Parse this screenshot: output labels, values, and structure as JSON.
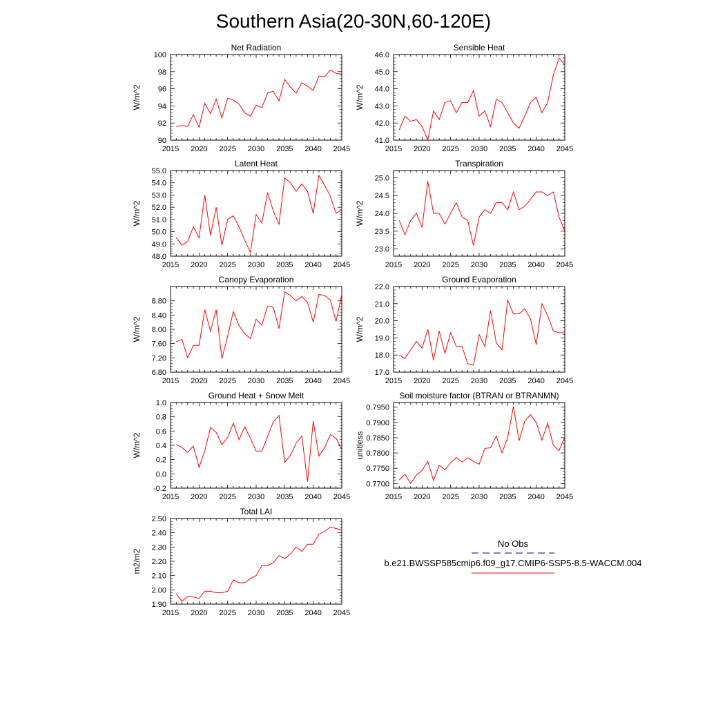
{
  "title": "Southern Asia(20-30N,60-120E)",
  "colors": {
    "series": "#ff0000",
    "obs": "#3333aa",
    "axis": "#000000"
  },
  "legend": {
    "obs_label": "No Obs",
    "model_label": "b.e21.BWSSP585cmip6.f09_g17.CMIP6-SSP5-8.5-WACCM.004"
  },
  "chart_data": [
    {
      "type": "line",
      "title": "Net Radiation",
      "ylabel": "W/m^2",
      "xlim": [
        2015,
        2045
      ],
      "ylim": [
        90,
        100
      ],
      "yticks": [
        "90",
        "92",
        "94",
        "96",
        "98",
        "100"
      ],
      "xticks": [
        "2015",
        "2020",
        "2025",
        "2030",
        "2035",
        "2040",
        "2045"
      ],
      "x": [
        2016,
        2017,
        2018,
        2019,
        2020,
        2021,
        2022,
        2023,
        2024,
        2025,
        2026,
        2027,
        2028,
        2029,
        2030,
        2031,
        2032,
        2033,
        2034,
        2035,
        2036,
        2037,
        2038,
        2039,
        2040,
        2041,
        2042,
        2043,
        2044,
        2045
      ],
      "values": [
        91.6,
        91.7,
        91.6,
        93.0,
        91.5,
        94.3,
        93.1,
        94.8,
        92.6,
        94.9,
        94.7,
        94.2,
        93.2,
        92.8,
        94.1,
        93.8,
        95.5,
        95.7,
        94.6,
        97.1,
        96.2,
        95.5,
        96.7,
        96.3,
        95.8,
        97.5,
        97.4,
        98.2,
        97.8,
        97.7
      ]
    },
    {
      "type": "line",
      "title": "Sensible Heat",
      "ylabel": "W/m^2",
      "xlim": [
        2015,
        2045
      ],
      "ylim": [
        41,
        46
      ],
      "yticks": [
        "41.0",
        "42.0",
        "43.0",
        "44.0",
        "45.0",
        "46.0"
      ],
      "xticks": [
        "2015",
        "2020",
        "2025",
        "2030",
        "2035",
        "2040",
        "2045"
      ],
      "x": [
        2016,
        2017,
        2018,
        2019,
        2020,
        2021,
        2022,
        2023,
        2024,
        2025,
        2026,
        2027,
        2028,
        2029,
        2030,
        2031,
        2032,
        2033,
        2034,
        2035,
        2036,
        2037,
        2038,
        2039,
        2040,
        2041,
        2042,
        2043,
        2044,
        2045
      ],
      "values": [
        41.6,
        42.4,
        42.1,
        42.2,
        41.8,
        41.0,
        42.7,
        42.2,
        43.2,
        43.3,
        42.6,
        43.2,
        43.2,
        43.9,
        42.4,
        42.7,
        41.8,
        43.4,
        43.2,
        42.6,
        42.0,
        41.7,
        42.4,
        43.2,
        43.5,
        42.6,
        43.2,
        44.8,
        45.8,
        45.4
      ]
    },
    {
      "type": "line",
      "title": "Latent Heat",
      "ylabel": "W/m^2",
      "xlim": [
        2015,
        2045
      ],
      "ylim": [
        48,
        55
      ],
      "yticks": [
        "48.0",
        "49.0",
        "50.0",
        "51.0",
        "52.0",
        "53.0",
        "54.0",
        "55.0"
      ],
      "xticks": [
        "2015",
        "2020",
        "2025",
        "2030",
        "2035",
        "2040",
        "2045"
      ],
      "x": [
        2016,
        2017,
        2018,
        2019,
        2020,
        2021,
        2022,
        2023,
        2024,
        2025,
        2026,
        2027,
        2028,
        2029,
        2030,
        2031,
        2032,
        2033,
        2034,
        2035,
        2036,
        2037,
        2038,
        2039,
        2040,
        2041,
        2042,
        2043,
        2044,
        2045
      ],
      "values": [
        49.5,
        48.9,
        49.2,
        50.4,
        49.5,
        53.0,
        49.7,
        52.0,
        48.9,
        51.0,
        51.3,
        50.4,
        49.3,
        48.3,
        51.4,
        50.7,
        53.2,
        51.7,
        50.6,
        54.4,
        54.0,
        53.3,
        53.9,
        53.3,
        51.5,
        54.6,
        53.8,
        52.9,
        51.5,
        51.8
      ]
    },
    {
      "type": "line",
      "title": "Transpiration",
      "ylabel": "W/m^2",
      "xlim": [
        2015,
        2045
      ],
      "ylim": [
        22.8,
        25.2
      ],
      "yticks": [
        "23.0",
        "23.5",
        "24.0",
        "24.5",
        "25.0"
      ],
      "ytick_values": [
        23.0,
        23.5,
        24.0,
        24.5,
        25.0
      ],
      "xticks": [
        "2015",
        "2020",
        "2025",
        "2030",
        "2035",
        "2040",
        "2045"
      ],
      "x": [
        2016,
        2017,
        2018,
        2019,
        2020,
        2021,
        2022,
        2023,
        2024,
        2025,
        2026,
        2027,
        2028,
        2029,
        2030,
        2031,
        2032,
        2033,
        2034,
        2035,
        2036,
        2037,
        2038,
        2039,
        2040,
        2041,
        2042,
        2043,
        2044,
        2045
      ],
      "values": [
        23.8,
        23.4,
        23.8,
        24.0,
        23.6,
        24.9,
        24.0,
        24.0,
        23.7,
        24.0,
        24.3,
        23.9,
        23.8,
        23.1,
        23.9,
        24.1,
        24.0,
        24.3,
        24.3,
        24.1,
        24.6,
        24.1,
        24.2,
        24.4,
        24.6,
        24.6,
        24.5,
        24.6,
        23.9,
        23.5
      ]
    },
    {
      "type": "line",
      "title": "Canopy Evaporation",
      "ylabel": "W/m^2",
      "xlim": [
        2015,
        2045
      ],
      "ylim": [
        6.8,
        9.2
      ],
      "yticks": [
        "6.80",
        "7.20",
        "7.60",
        "8.00",
        "8.40",
        "8.80"
      ],
      "ytick_values": [
        6.8,
        7.2,
        7.6,
        8.0,
        8.4,
        8.8
      ],
      "xticks": [
        "2015",
        "2020",
        "2025",
        "2030",
        "2035",
        "2040",
        "2045"
      ],
      "x": [
        2016,
        2017,
        2018,
        2019,
        2020,
        2021,
        2022,
        2023,
        2024,
        2025,
        2026,
        2027,
        2028,
        2029,
        2030,
        2031,
        2032,
        2033,
        2034,
        2035,
        2036,
        2037,
        2038,
        2039,
        2040,
        2041,
        2042,
        2043,
        2044,
        2045
      ],
      "values": [
        7.65,
        7.72,
        7.2,
        7.55,
        7.55,
        8.55,
        7.95,
        8.55,
        7.18,
        7.8,
        8.5,
        8.1,
        7.88,
        7.74,
        8.28,
        8.12,
        8.65,
        8.62,
        8.02,
        9.05,
        8.95,
        8.8,
        8.92,
        8.76,
        8.2,
        8.98,
        8.95,
        8.82,
        8.22,
        8.98
      ]
    },
    {
      "type": "line",
      "title": "Ground Evaporation",
      "ylabel": "W/m^2",
      "xlim": [
        2015,
        2045
      ],
      "ylim": [
        17,
        22
      ],
      "yticks": [
        "17.0",
        "18.0",
        "19.0",
        "20.0",
        "21.0",
        "22.0"
      ],
      "xticks": [
        "2015",
        "2020",
        "2025",
        "2030",
        "2035",
        "2040",
        "2045"
      ],
      "x": [
        2016,
        2017,
        2018,
        2019,
        2020,
        2021,
        2022,
        2023,
        2024,
        2025,
        2026,
        2027,
        2028,
        2029,
        2030,
        2031,
        2032,
        2033,
        2034,
        2035,
        2036,
        2037,
        2038,
        2039,
        2040,
        2041,
        2042,
        2043,
        2044,
        2045
      ],
      "values": [
        18.0,
        17.8,
        18.3,
        18.8,
        18.4,
        19.5,
        17.7,
        19.4,
        18.1,
        19.3,
        18.5,
        18.5,
        17.5,
        17.4,
        19.2,
        18.5,
        20.6,
        18.7,
        18.3,
        21.2,
        20.4,
        20.4,
        20.7,
        20.1,
        18.6,
        21.0,
        20.3,
        19.4,
        19.3,
        19.3
      ]
    },
    {
      "type": "line",
      "title": "Ground Heat + Snow Melt",
      "ylabel": "W/m^2",
      "xlim": [
        2015,
        2045
      ],
      "ylim": [
        -0.2,
        1.0
      ],
      "yticks": [
        "-0.2",
        "0.0",
        "0.2",
        "0.4",
        "0.6",
        "0.8",
        "1.0"
      ],
      "xticks": [
        "2015",
        "2020",
        "2025",
        "2030",
        "2035",
        "2040",
        "2045"
      ],
      "x": [
        2016,
        2017,
        2018,
        2019,
        2020,
        2021,
        2022,
        2023,
        2024,
        2025,
        2026,
        2027,
        2028,
        2029,
        2030,
        2031,
        2032,
        2033,
        2034,
        2035,
        2036,
        2037,
        2038,
        2039,
        2040,
        2041,
        2042,
        2043,
        2044,
        2045
      ],
      "values": [
        0.41,
        0.37,
        0.3,
        0.39,
        0.09,
        0.32,
        0.65,
        0.58,
        0.41,
        0.51,
        0.71,
        0.48,
        0.66,
        0.5,
        0.32,
        0.32,
        0.52,
        0.73,
        0.82,
        0.16,
        0.26,
        0.43,
        0.53,
        -0.11,
        0.74,
        0.25,
        0.37,
        0.55,
        0.5,
        0.34
      ]
    },
    {
      "type": "line",
      "title": "Soil moisture factor (BTRAN or BTRANMN)",
      "ylabel": "unitless",
      "xlim": [
        2015,
        2045
      ],
      "ylim": [
        0.7685,
        0.7965
      ],
      "yticks": [
        "0.7700",
        "0.7750",
        "0.7800",
        "0.7850",
        "0.7900",
        "0.7950"
      ],
      "ytick_values": [
        0.77,
        0.775,
        0.78,
        0.785,
        0.79,
        0.795
      ],
      "xticks": [
        "2015",
        "2020",
        "2025",
        "2030",
        "2035",
        "2040",
        "2045"
      ],
      "x": [
        2016,
        2017,
        2018,
        2019,
        2020,
        2021,
        2022,
        2023,
        2024,
        2025,
        2026,
        2027,
        2028,
        2029,
        2030,
        2031,
        2032,
        2033,
        2034,
        2035,
        2036,
        2037,
        2038,
        2039,
        2040,
        2041,
        2042,
        2043,
        2044,
        2045
      ],
      "values": [
        0.7712,
        0.773,
        0.77,
        0.7728,
        0.7743,
        0.7772,
        0.771,
        0.776,
        0.7745,
        0.7768,
        0.7785,
        0.777,
        0.7785,
        0.7772,
        0.7763,
        0.7815,
        0.7817,
        0.7855,
        0.78,
        0.785,
        0.7952,
        0.784,
        0.7905,
        0.7925,
        0.79,
        0.7842,
        0.7897,
        0.7825,
        0.7808,
        0.7852
      ]
    },
    {
      "type": "line",
      "title": "Total LAI",
      "ylabel": "m2/m2",
      "xlim": [
        2015,
        2045
      ],
      "ylim": [
        1.9,
        2.5
      ],
      "yticks": [
        "1.90",
        "2.00",
        "2.10",
        "2.20",
        "2.30",
        "2.40",
        "2.50"
      ],
      "xticks": [
        "2015",
        "2020",
        "2025",
        "2030",
        "2035",
        "2040",
        "2045"
      ],
      "x": [
        2016,
        2017,
        2018,
        2019,
        2020,
        2021,
        2022,
        2023,
        2024,
        2025,
        2026,
        2027,
        2028,
        2029,
        2030,
        2031,
        2032,
        2033,
        2034,
        2035,
        2036,
        2037,
        2038,
        2039,
        2040,
        2041,
        2042,
        2043,
        2044,
        2045
      ],
      "values": [
        1.97,
        1.92,
        1.955,
        1.95,
        1.94,
        1.99,
        1.99,
        1.98,
        1.98,
        1.99,
        2.07,
        2.05,
        2.05,
        2.08,
        2.1,
        2.17,
        2.17,
        2.19,
        2.24,
        2.22,
        2.25,
        2.3,
        2.27,
        2.32,
        2.32,
        2.39,
        2.41,
        2.44,
        2.43,
        2.42
      ]
    }
  ]
}
